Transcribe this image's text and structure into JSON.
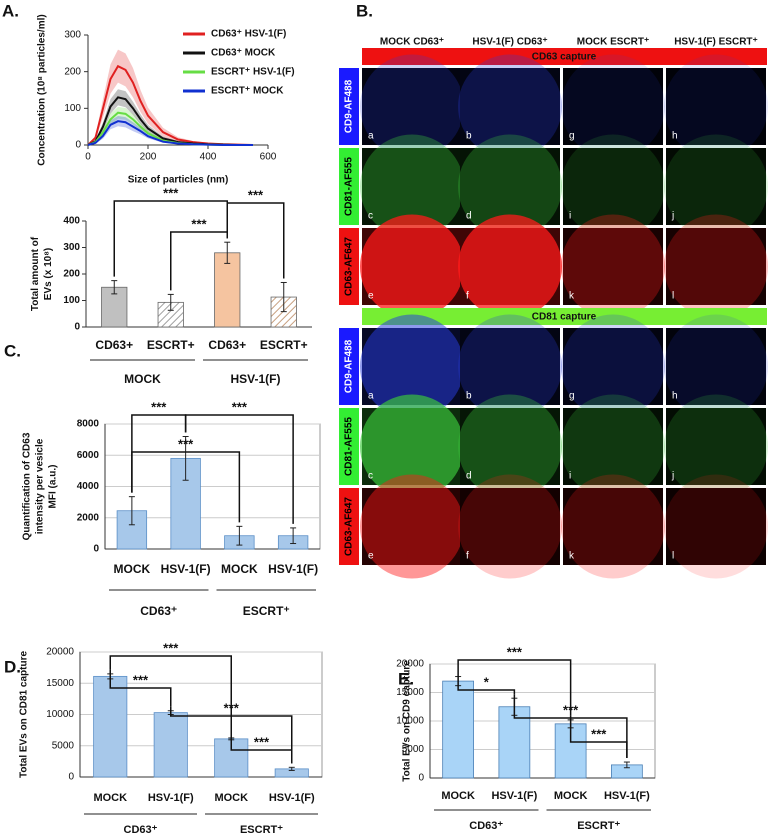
{
  "panels": [
    "A.",
    "B.",
    "C.",
    "D.",
    "E."
  ],
  "panel_b": {
    "columns": [
      "MOCK CD63⁺",
      "HSV-1(F) CD63⁺",
      "MOCK ESCRT⁺",
      "HSV-1(F) ESCRT⁺"
    ],
    "sections": [
      {
        "title": "CD63 capture",
        "rows": [
          "CD9-AF488",
          "CD81-AF555",
          "CD63-AF647"
        ]
      },
      {
        "title": "CD81 capture",
        "rows": [
          "CD9-AF488",
          "CD81-AF555",
          "CD63-AF647"
        ]
      }
    ],
    "cell_letters": [
      [
        "a",
        "b",
        "g",
        "h"
      ],
      [
        "c",
        "d",
        "i",
        "j"
      ],
      [
        "e",
        "f",
        "k",
        "l"
      ]
    ]
  },
  "chart_data": [
    {
      "type": "line",
      "xlabel": "Size of particles (nm)",
      "ylabel": [
        "Concentration (10⁸ particles/ml)"
      ],
      "x": [
        0,
        25,
        50,
        75,
        100,
        125,
        150,
        175,
        200,
        250,
        300,
        350,
        400,
        450,
        500,
        550
      ],
      "xlim": [
        0,
        600
      ],
      "xticks": [
        0,
        200,
        400,
        600
      ],
      "ylim": [
        0,
        300
      ],
      "yticks": [
        0,
        100,
        200,
        300
      ],
      "series": [
        {
          "name": "CD63⁺ HSV-1(F)",
          "color": "#e02020",
          "values": [
            0,
            20,
            100,
            180,
            215,
            205,
            170,
            120,
            80,
            35,
            15,
            8,
            4,
            2,
            1,
            0
          ],
          "errors": [
            0,
            6,
            25,
            40,
            45,
            45,
            40,
            30,
            22,
            12,
            6,
            3,
            2,
            1,
            1,
            0
          ]
        },
        {
          "name": "CD63⁺ MOCK",
          "color": "#111111",
          "values": [
            0,
            10,
            50,
            105,
            130,
            125,
            100,
            70,
            45,
            18,
            8,
            4,
            2,
            1,
            0,
            0
          ],
          "errors": [
            0,
            3,
            12,
            20,
            22,
            22,
            18,
            14,
            10,
            5,
            3,
            2,
            1,
            0,
            0,
            0
          ]
        },
        {
          "name": "ESCRT⁺ HSV-1(F)",
          "color": "#66dd44",
          "values": [
            0,
            8,
            35,
            70,
            88,
            85,
            70,
            50,
            32,
            12,
            5,
            2,
            1,
            0,
            0,
            0
          ],
          "errors": [
            0,
            3,
            10,
            15,
            16,
            16,
            14,
            10,
            7,
            4,
            2,
            1,
            0,
            0,
            0,
            0
          ]
        },
        {
          "name": "ESCRT⁺ MOCK",
          "color": "#1030d0",
          "values": [
            0,
            6,
            25,
            55,
            65,
            62,
            50,
            38,
            24,
            9,
            4,
            2,
            1,
            0,
            0,
            0
          ],
          "errors": [
            0,
            2,
            8,
            12,
            14,
            14,
            12,
            9,
            6,
            3,
            2,
            1,
            0,
            0,
            0,
            0
          ]
        }
      ]
    },
    {
      "type": "bar",
      "ylabel": [
        "Total amount of",
        "EVs (x 10⁸)"
      ],
      "categories": [
        "CD63+",
        "ESCRT+",
        "CD63+",
        "ESCRT+"
      ],
      "groups": [
        "MOCK",
        "HSV-1(F)"
      ],
      "values": [
        150,
        93,
        280,
        113
      ],
      "errors": [
        25,
        30,
        40,
        55
      ],
      "colors": [
        "#c0c0c0",
        "#a0a0a0",
        "#f5c4a0",
        "#c8a080"
      ],
      "hatched": [
        false,
        true,
        false,
        true
      ],
      "ylim": [
        0,
        400
      ],
      "yticks": [
        0,
        100,
        200,
        300,
        400
      ],
      "grid": false,
      "significance": [
        "***",
        "***",
        "***"
      ]
    },
    {
      "type": "bar",
      "ylabel": [
        "Quantification of CD63",
        "intensity per vesicle",
        "MFI (a.u.)"
      ],
      "categories": [
        "MOCK",
        "HSV-1(F)",
        "MOCK",
        "HSV-1(F)"
      ],
      "groups": [
        "CD63⁺",
        "ESCRT⁺"
      ],
      "values": [
        2450,
        5800,
        850,
        850
      ],
      "errors": [
        900,
        1400,
        600,
        500
      ],
      "colors": [
        "#a7c8ea",
        "#a7c8ea",
        "#a7c8ea",
        "#a7c8ea"
      ],
      "hatched": [
        false,
        false,
        false,
        false
      ],
      "ylim": [
        0,
        8000
      ],
      "yticks": [
        0,
        2000,
        4000,
        6000,
        8000
      ],
      "grid": true,
      "significance": [
        "***",
        "***",
        "***"
      ]
    },
    {
      "type": "bar",
      "ylabel": [
        "Total EVs on CD81 capture"
      ],
      "categories": [
        "MOCK",
        "HSV-1(F)",
        "MOCK",
        "HSV-1(F)"
      ],
      "groups": [
        "CD63⁺",
        "ESCRT⁺"
      ],
      "values": [
        16100,
        10300,
        6100,
        1300
      ],
      "errors": [
        400,
        300,
        150,
        250
      ],
      "colors": [
        "#a7c8ea",
        "#a7c8ea",
        "#a7c8ea",
        "#a7c8ea"
      ],
      "hatched": [
        false,
        false,
        false,
        false
      ],
      "ylim": [
        0,
        20000
      ],
      "yticks": [
        0,
        5000,
        10000,
        15000,
        20000
      ],
      "grid": true,
      "significance": [
        "***",
        "***",
        "***",
        "***"
      ]
    },
    {
      "type": "bar",
      "ylabel": [
        "Total EVs on CD9 capture"
      ],
      "categories": [
        "MOCK",
        "HSV-1(F)",
        "MOCK",
        "HSV-1(F)"
      ],
      "groups": [
        "CD63⁺",
        "ESCRT⁺"
      ],
      "values": [
        17000,
        12500,
        9500,
        2300
      ],
      "errors": [
        800,
        1500,
        700,
        500
      ],
      "colors": [
        "#a9d4f7",
        "#a9d4f7",
        "#a9d4f7",
        "#a9d4f7"
      ],
      "hatched": [
        false,
        false,
        false,
        false
      ],
      "ylim": [
        0,
        20000
      ],
      "yticks": [
        0,
        5000,
        10000,
        15000,
        20000
      ],
      "grid": true,
      "significance": [
        "***",
        "*",
        "***",
        "***"
      ]
    }
  ]
}
